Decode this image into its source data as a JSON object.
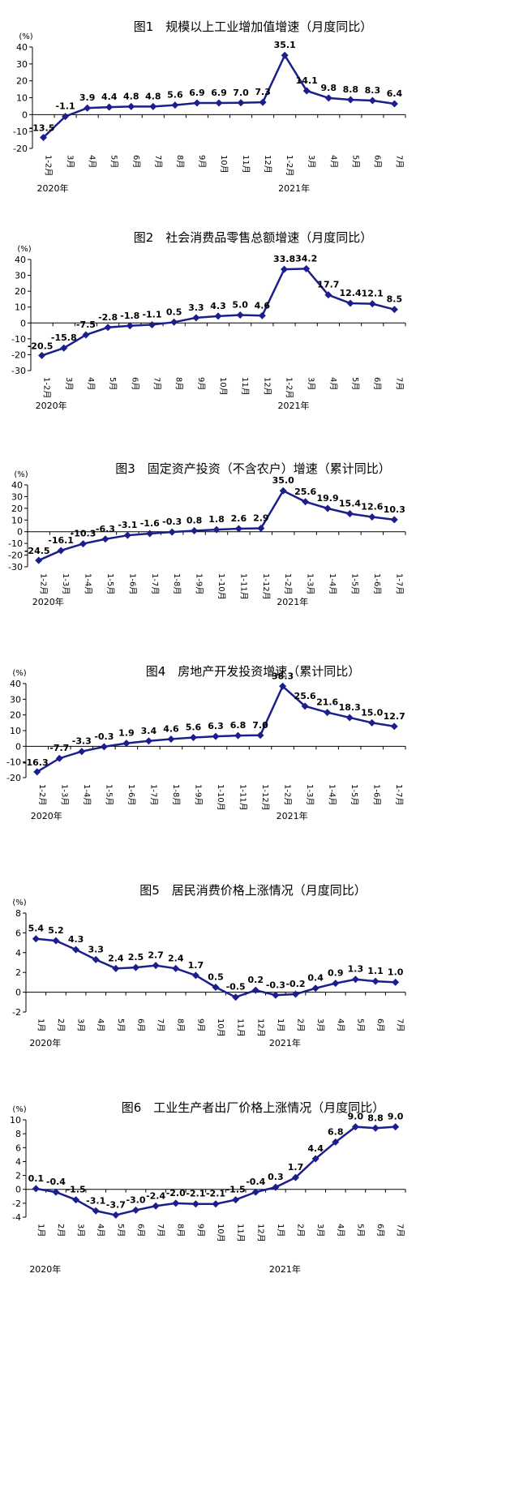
{
  "chart_data": [
    {
      "type": "line",
      "title": "图1　规模以上工业增加值增速（月度同比）",
      "unit": "(%)",
      "ylim": [
        -20,
        40
      ],
      "yticks": [
        -20,
        -10,
        0,
        10,
        20,
        30,
        40
      ],
      "categories": [
        "1-2月",
        "3月",
        "4月",
        "5月",
        "6月",
        "7月",
        "8月",
        "9月",
        "10月",
        "11月",
        "12月",
        "1-2月",
        "3月",
        "4月",
        "5月",
        "6月",
        "7月"
      ],
      "year_labels": [
        {
          "text": "2020年",
          "index": 0
        },
        {
          "text": "2021年",
          "index": 11
        }
      ],
      "values": [
        -13.5,
        -1.1,
        3.9,
        4.4,
        4.8,
        4.8,
        5.6,
        6.9,
        6.9,
        7.0,
        7.3,
        35.1,
        14.1,
        9.8,
        8.8,
        8.3,
        6.4
      ]
    },
    {
      "type": "line",
      "title": "图2　社会消费品零售总额增速（月度同比）",
      "unit": "(%)",
      "ylim": [
        -30,
        40
      ],
      "yticks": [
        -30,
        -20,
        -10,
        0,
        10,
        20,
        30,
        40
      ],
      "categories": [
        "1-2月",
        "3月",
        "4月",
        "5月",
        "6月",
        "7月",
        "8月",
        "9月",
        "10月",
        "11月",
        "12月",
        "1-2月",
        "3月",
        "4月",
        "5月",
        "6月",
        "7月"
      ],
      "year_labels": [
        {
          "text": "2020年",
          "index": 0
        },
        {
          "text": "2021年",
          "index": 11
        }
      ],
      "values": [
        -20.5,
        -15.8,
        -7.5,
        -2.8,
        -1.8,
        -1.1,
        0.5,
        3.3,
        4.3,
        5.0,
        4.6,
        33.8,
        34.2,
        17.7,
        12.4,
        12.1,
        8.5
      ]
    },
    {
      "type": "line",
      "title": "图3　固定资产投资（不含农户）增速（累计同比）",
      "unit": "(%)",
      "ylim": [
        -30,
        40
      ],
      "yticks": [
        -30,
        -20,
        -10,
        0,
        10,
        20,
        30,
        40
      ],
      "categories": [
        "1-2月",
        "1-3月",
        "1-4月",
        "1-5月",
        "1-6月",
        "1-7月",
        "1-8月",
        "1-9月",
        "1-10月",
        "1-11月",
        "1-12月",
        "1-2月",
        "1-3月",
        "1-4月",
        "1-5月",
        "1-6月",
        "1-7月"
      ],
      "year_labels": [
        {
          "text": "2020年",
          "index": 0
        },
        {
          "text": "2021年",
          "index": 11
        }
      ],
      "values": [
        -24.5,
        -16.1,
        -10.3,
        -6.3,
        -3.1,
        -1.6,
        -0.3,
        0.8,
        1.8,
        2.6,
        2.9,
        35.0,
        25.6,
        19.9,
        15.4,
        12.6,
        10.3
      ]
    },
    {
      "type": "line",
      "title": "图4　房地产开发投资增速（累计同比）",
      "unit": "(%)",
      "ylim": [
        -20,
        40
      ],
      "yticks": [
        -20,
        -10,
        0,
        10,
        20,
        30,
        40
      ],
      "categories": [
        "1-2月",
        "1-3月",
        "1-4月",
        "1-5月",
        "1-6月",
        "1-7月",
        "1-8月",
        "1-9月",
        "1-10月",
        "1-11月",
        "1-12月",
        "1-2月",
        "1-3月",
        "1-4月",
        "1-5月",
        "1-6月",
        "1-7月"
      ],
      "year_labels": [
        {
          "text": "2020年",
          "index": 0
        },
        {
          "text": "2021年",
          "index": 11
        }
      ],
      "values": [
        -16.3,
        -7.7,
        -3.3,
        -0.3,
        1.9,
        3.4,
        4.6,
        5.6,
        6.3,
        6.8,
        7.0,
        38.3,
        25.6,
        21.6,
        18.3,
        15.0,
        12.7
      ]
    },
    {
      "type": "line",
      "title": "图5　居民消费价格上涨情况（月度同比）",
      "unit": "(%)",
      "ylim": [
        -2,
        8
      ],
      "yticks": [
        -2,
        0,
        2,
        4,
        6,
        8
      ],
      "categories": [
        "1月",
        "2月",
        "3月",
        "4月",
        "5月",
        "6月",
        "7月",
        "8月",
        "9月",
        "10月",
        "11月",
        "12月",
        "1月",
        "2月",
        "3月",
        "4月",
        "5月",
        "6月",
        "7月"
      ],
      "year_labels": [
        {
          "text": "2020年",
          "index": 0
        },
        {
          "text": "2021年",
          "index": 12
        }
      ],
      "values": [
        5.4,
        5.2,
        4.3,
        3.3,
        2.4,
        2.5,
        2.7,
        2.4,
        1.7,
        0.5,
        -0.5,
        0.2,
        -0.3,
        -0.2,
        0.4,
        0.9,
        1.3,
        1.1,
        1.0
      ]
    },
    {
      "type": "line",
      "title": "图6　工业生产者出厂价格上涨情况（月度同比）",
      "unit": "(%)",
      "ylim": [
        -4,
        10
      ],
      "yticks": [
        -4,
        -2,
        0,
        2,
        4,
        6,
        8,
        10
      ],
      "categories": [
        "1月",
        "2月",
        "3月",
        "4月",
        "5月",
        "6月",
        "7月",
        "8月",
        "9月",
        "10月",
        "11月",
        "12月",
        "1月",
        "2月",
        "3月",
        "4月",
        "5月",
        "6月",
        "7月"
      ],
      "year_labels": [
        {
          "text": "2020年",
          "index": 0
        },
        {
          "text": "2021年",
          "index": 12
        }
      ],
      "values": [
        0.1,
        -0.4,
        -1.5,
        -3.1,
        -3.7,
        -3.0,
        -2.4,
        -2.0,
        -2.1,
        -2.1,
        -1.5,
        -0.4,
        0.3,
        1.7,
        4.4,
        6.8,
        9.0,
        8.8,
        9.0
      ]
    }
  ],
  "colors": {
    "line": "#1a1f8c",
    "marker": "#1a1f8c",
    "axis": "#000000",
    "text": "#000000"
  }
}
